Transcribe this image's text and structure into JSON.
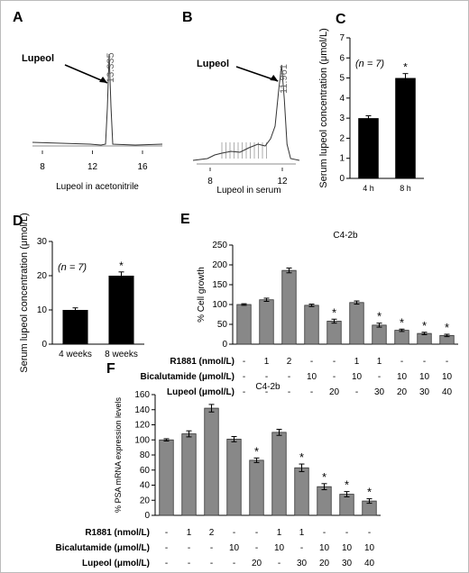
{
  "chart_data": [
    {
      "panel": "A",
      "type": "line",
      "title": "",
      "xlabel": "Lupeol in acetonitrile",
      "x_ticks": [
        "8",
        "12",
        "16"
      ],
      "peak_label": "13.335",
      "annotation": "Lupeol"
    },
    {
      "panel": "B",
      "type": "line",
      "title": "",
      "xlabel": "Lupeol in serum",
      "x_ticks": [
        "8",
        "12"
      ],
      "peak_label": "11.961",
      "annotation": "Lupeol"
    },
    {
      "panel": "C",
      "type": "bar",
      "categories": [
        "4 h",
        "8 h"
      ],
      "values": [
        3.0,
        5.0
      ],
      "errors": [
        0.12,
        0.22
      ],
      "significant": [
        "",
        "*"
      ],
      "ylabel": "Serum lupeol concentration (μmol/L)",
      "ylim": [
        0,
        7
      ],
      "y_ticks": [
        "0",
        "1",
        "2",
        "3",
        "4",
        "5",
        "6",
        "7"
      ],
      "note": "(n = 7)"
    },
    {
      "panel": "D",
      "type": "bar",
      "categories": [
        "4 weeks",
        "8 weeks"
      ],
      "values": [
        10,
        20
      ],
      "errors": [
        0.6,
        1.1
      ],
      "significant": [
        "",
        "*"
      ],
      "ylabel": "Serum lupeol concentration (μmol/L)",
      "ylim": [
        0,
        30
      ],
      "y_ticks": [
        "0",
        "10",
        "20",
        "30"
      ],
      "note": "(n = 7)"
    },
    {
      "panel": "E",
      "type": "bar",
      "title": "C4-2b",
      "ylabel": "% Cell growth",
      "ylim": [
        0,
        250
      ],
      "y_ticks": [
        "0",
        "50",
        "100",
        "150",
        "200",
        "250"
      ],
      "values": [
        100,
        112,
        186,
        98,
        58,
        105,
        48,
        35,
        27,
        22
      ],
      "errors": [
        2,
        4,
        6,
        3,
        5,
        4,
        5,
        3,
        3,
        3
      ],
      "significant": [
        "",
        "",
        "",
        "",
        "*",
        "",
        "*",
        "*",
        "*",
        "*"
      ],
      "condition_rows": [
        {
          "label": "R1881 (nmol/L)",
          "values": [
            "-",
            "1",
            "2",
            "-",
            "-",
            "1",
            "1",
            "-",
            "-",
            "-"
          ]
        },
        {
          "label": "Bicalutamide (μmol/L)",
          "values": [
            "-",
            "-",
            "-",
            "10",
            "-",
            "10",
            "-",
            "10",
            "10",
            "10"
          ]
        },
        {
          "label": "Lupeol  (μmol/L)",
          "values": [
            "-",
            "-",
            "-",
            "-",
            "20",
            "-",
            "30",
            "20",
            "30",
            "40"
          ]
        }
      ]
    },
    {
      "panel": "F",
      "type": "bar",
      "title": "C4-2b",
      "ylabel": "% PSA mRNA expression levels",
      "ylim": [
        0,
        160
      ],
      "y_ticks": [
        "0",
        "20",
        "40",
        "60",
        "80",
        "100",
        "120",
        "140",
        "160"
      ],
      "values": [
        100,
        108,
        142,
        101,
        73,
        110,
        63,
        38,
        28,
        19
      ],
      "errors": [
        1.5,
        4,
        5,
        3.5,
        3,
        4,
        5,
        4,
        3.5,
        3
      ],
      "significant": [
        "",
        "",
        "",
        "",
        "*",
        "",
        "*",
        "*",
        "*",
        "*"
      ],
      "condition_rows": [
        {
          "label": "R1881 (nmol/L)",
          "values": [
            "-",
            "1",
            "2",
            "-",
            "-",
            "1",
            "1",
            "-",
            "-",
            "-"
          ]
        },
        {
          "label": "Bicalutamide (μmol/L)",
          "values": [
            "-",
            "-",
            "-",
            "10",
            "-",
            "10",
            "-",
            "10",
            "10",
            "10"
          ]
        },
        {
          "label": "Lupeol  (μmol/L)",
          "values": [
            "-",
            "-",
            "-",
            "-",
            "20",
            "-",
            "30",
            "20",
            "30",
            "40"
          ]
        }
      ]
    }
  ]
}
